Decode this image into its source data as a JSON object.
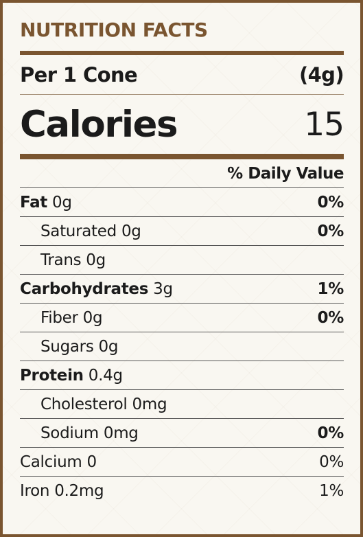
{
  "title": "NUTRITION FACTS",
  "serving": {
    "label": "Per 1 Cone",
    "amount": "(4g)"
  },
  "calories": {
    "label": "Calories",
    "value": "15"
  },
  "daily_value_header": "% Daily Value",
  "nutrients": [
    {
      "name": "Fat",
      "amount": "0g",
      "dv": "0%"
    },
    {
      "name": "Saturated",
      "amount": "0g",
      "dv": "0%"
    },
    {
      "name": "Trans",
      "amount": "0g",
      "dv": ""
    },
    {
      "name": "Carbohydrates",
      "amount": "3g",
      "dv": "1%"
    },
    {
      "name": "Fiber",
      "amount": "0g",
      "dv": "0%"
    },
    {
      "name": "Sugars",
      "amount": "0g",
      "dv": ""
    },
    {
      "name": "Protein",
      "amount": "0.4g",
      "dv": ""
    },
    {
      "name": "Cholesterol",
      "amount": "0mg",
      "dv": ""
    },
    {
      "name": "Sodium",
      "amount": "0mg",
      "dv": "0%"
    },
    {
      "name": "Calcium",
      "amount": "0",
      "dv": "0%"
    },
    {
      "name": "Iron",
      "amount": "0.2mg",
      "dv": "1%"
    }
  ],
  "colors": {
    "accent": "#7a5530",
    "background": "#f9f7f1",
    "text": "#1b1b1b"
  }
}
